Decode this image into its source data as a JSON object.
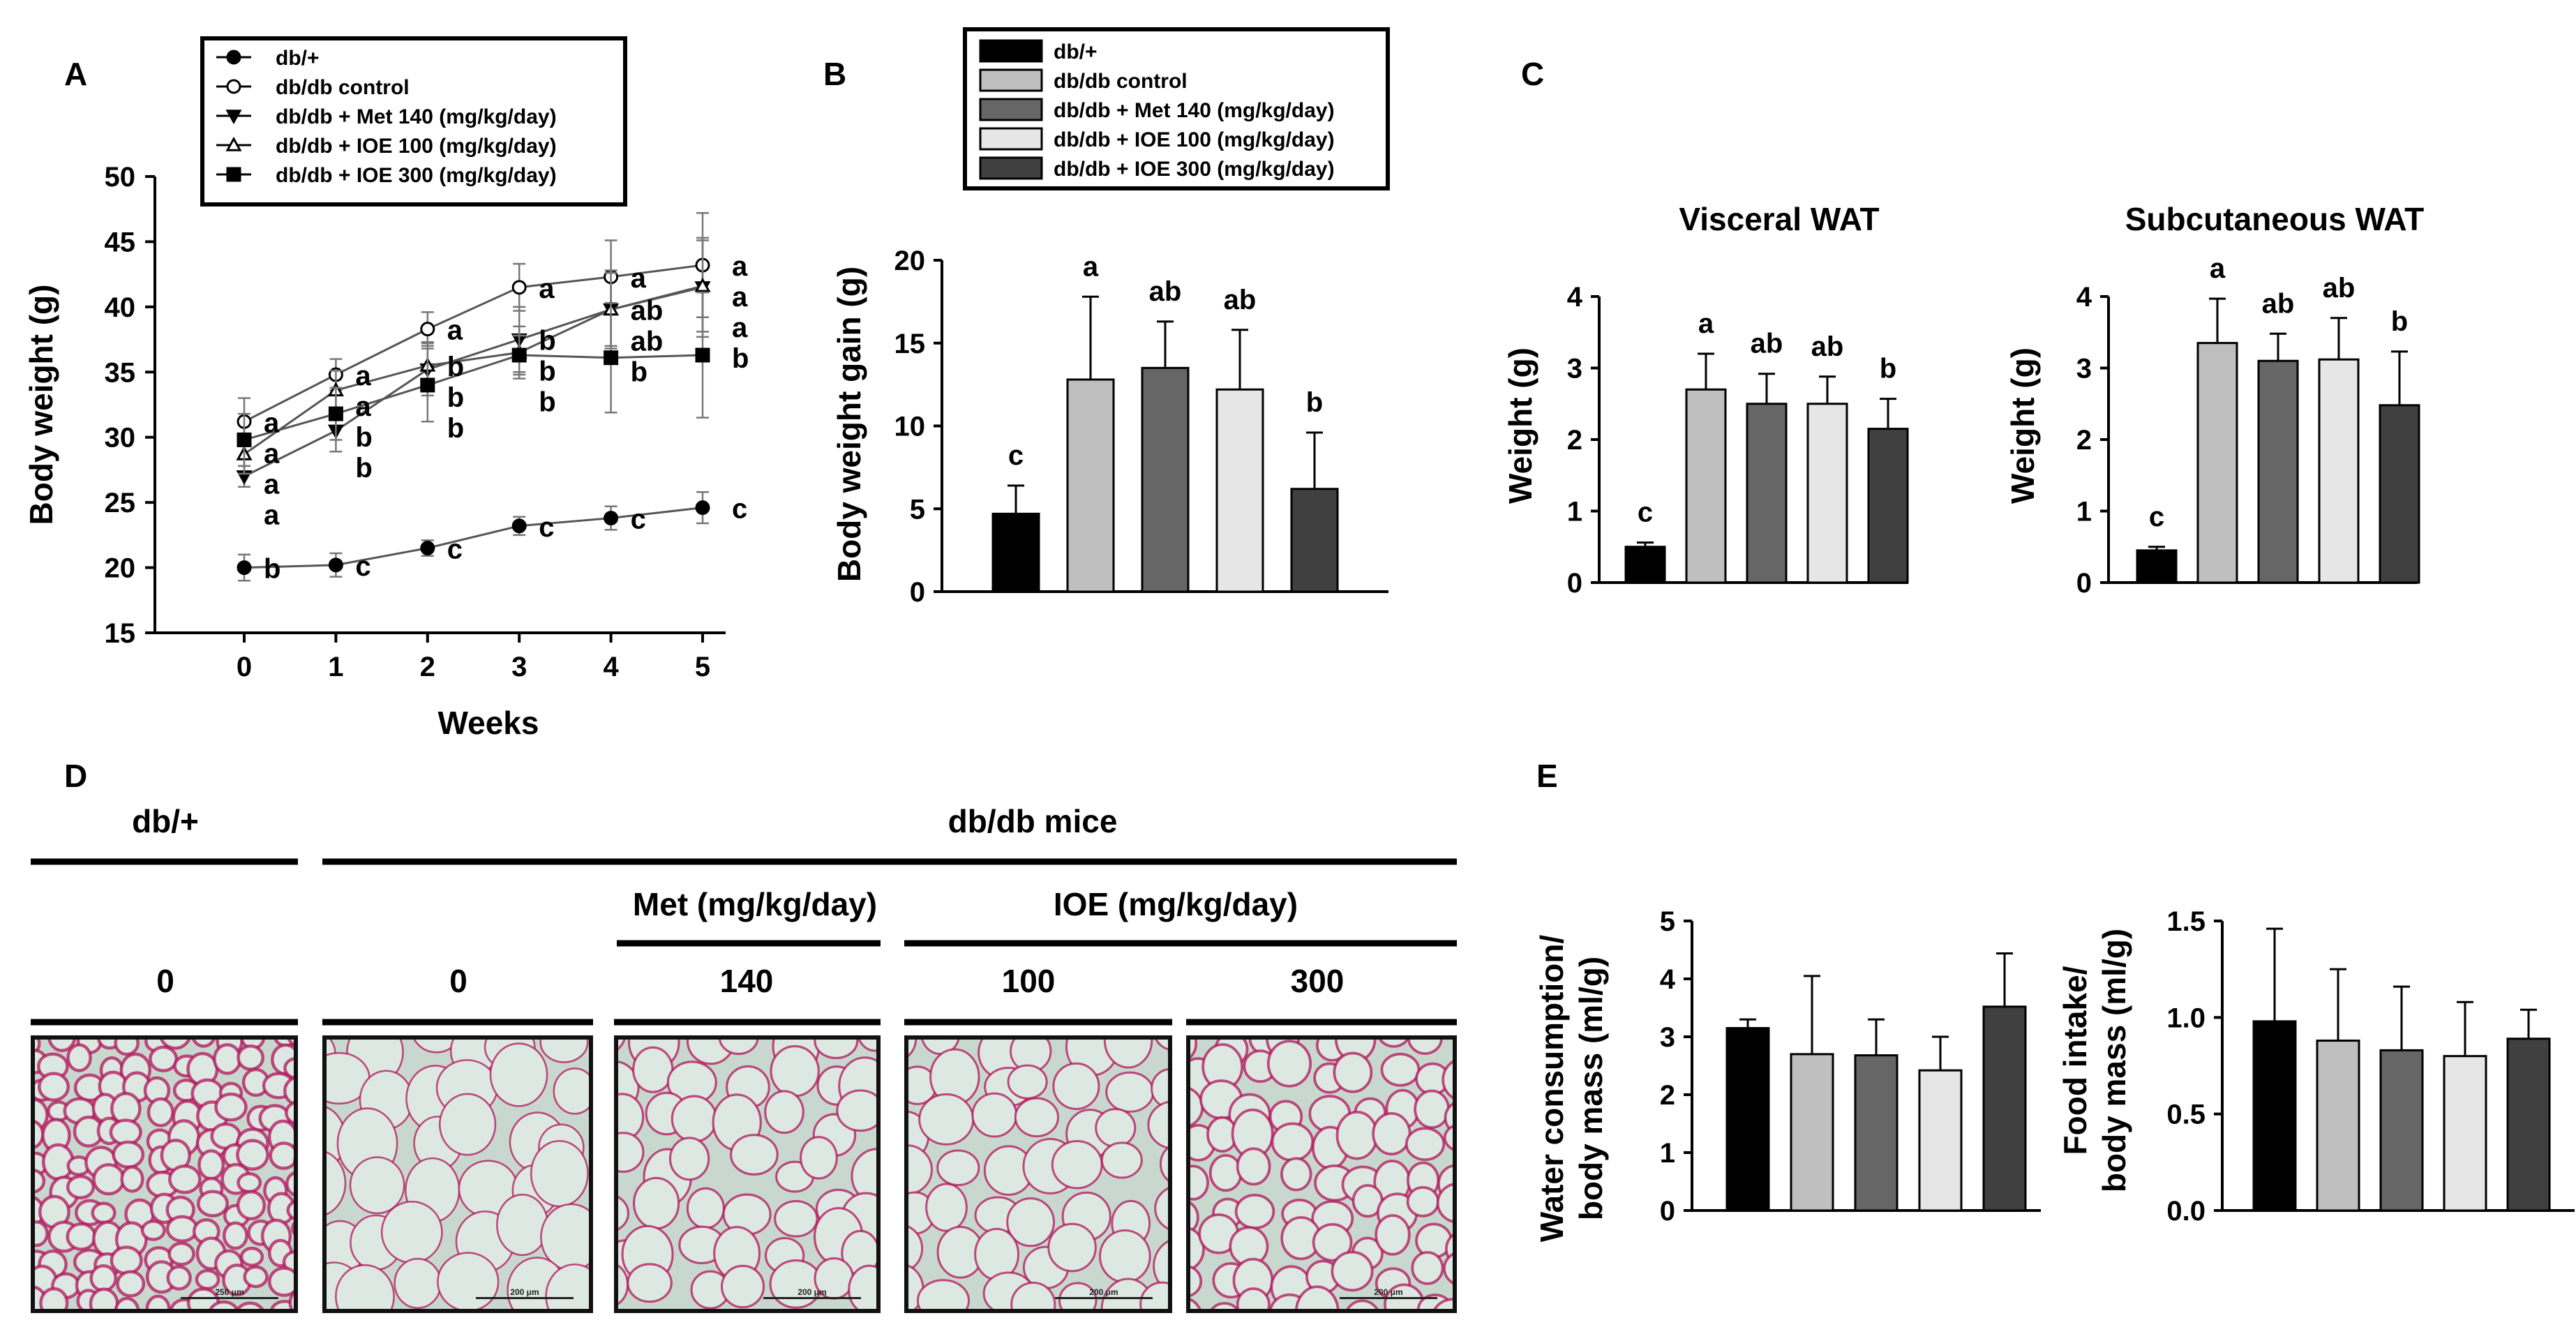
{
  "colors": {
    "db_plus": "#000000",
    "control": "#bfbfbf",
    "met": "#666666",
    "ioe100": "#e6e6e6",
    "ioe300": "#404040",
    "tissue_bg": "#c9d8cf",
    "stain": "#b0145a"
  },
  "legend_groups": [
    "db/+",
    "db/db  control",
    "db/db  + Met 140 (mg/kg/day)",
    "db/db  + IOE 100 (mg/kg/day)",
    "db/db  + IOE 300 (mg/kg/day)"
  ],
  "legend_markers": [
    "filled-circle",
    "open-circle",
    "filled-down-triangle",
    "open-up-triangle",
    "filled-square"
  ],
  "panels": {
    "A": "A",
    "B": "B",
    "C": "C",
    "D": "D",
    "E": "E"
  },
  "chart_data": [
    {
      "id": "A",
      "type": "line",
      "xlabel": "Weeks",
      "ylabel": "Body weight (g)",
      "x": [
        0,
        1,
        2,
        3,
        4,
        5
      ],
      "ylim": [
        15,
        50
      ],
      "yticks": [
        15,
        20,
        25,
        30,
        35,
        40,
        45,
        50
      ],
      "series": [
        {
          "name": "db/+",
          "marker": "filled-circle",
          "values": [
            20.0,
            20.2,
            21.5,
            23.2,
            23.8,
            24.6
          ],
          "errors": [
            1.0,
            0.9,
            0.6,
            0.7,
            0.9,
            1.2
          ],
          "letters": [
            "b",
            "c",
            "c",
            "c",
            "c",
            "c"
          ]
        },
        {
          "name": "db/db  control",
          "marker": "open-circle",
          "values": [
            31.2,
            34.8,
            38.3,
            41.5,
            42.3,
            43.2
          ],
          "errors": [
            1.8,
            1.2,
            1.3,
            1.8,
            2.8,
            4.0
          ],
          "letters": [
            "a",
            "a",
            "a",
            "a",
            "a",
            "a"
          ]
        },
        {
          "name": "db/db  + Met 140 (mg/kg/day)",
          "marker": "filled-down-triangle",
          "values": [
            27.0,
            30.5,
            35.2,
            37.5,
            39.8,
            41.5
          ],
          "errors": [
            0.8,
            1.6,
            2.0,
            2.5,
            3.0,
            3.8
          ],
          "letters": [
            "a",
            "b",
            "b",
            "b",
            "ab",
            "a"
          ]
        },
        {
          "name": "db/db  + IOE 100 (mg/kg/day)",
          "marker": "open-up-triangle",
          "values": [
            28.7,
            33.6,
            35.5,
            36.5,
            39.8,
            41.6
          ],
          "errors": [
            1.5,
            1.5,
            1.8,
            2.0,
            2.8,
            3.5
          ],
          "letters": [
            "a",
            "a",
            "b",
            "b",
            "ab",
            "a"
          ]
        },
        {
          "name": "db/db  + IOE 300 (mg/kg/day)",
          "marker": "filled-square",
          "values": [
            29.8,
            31.8,
            34.0,
            36.3,
            36.1,
            36.3
          ],
          "errors": [
            2.0,
            2.0,
            2.8,
            1.5,
            4.2,
            4.8
          ],
          "letters": [
            "a",
            "b",
            "b",
            "b",
            "b",
            "b"
          ]
        }
      ]
    },
    {
      "id": "B",
      "type": "bar",
      "ylabel": "Body weight gain (g)",
      "ylim": [
        0,
        20
      ],
      "yticks": [
        0,
        5,
        10,
        15,
        20
      ],
      "categories": [
        "db/+",
        "db/db  control",
        "db/db  + Met 140 (mg/kg/day)",
        "db/db  + IOE 100 (mg/kg/day)",
        "db/db  + IOE 300 (mg/kg/day)"
      ],
      "values": [
        4.7,
        12.8,
        13.5,
        12.2,
        6.2
      ],
      "errors": [
        1.7,
        5.0,
        2.8,
        3.6,
        3.4
      ],
      "letters": [
        "c",
        "a",
        "ab",
        "ab",
        "b"
      ]
    },
    {
      "id": "C1",
      "type": "bar",
      "title": "Visceral WAT",
      "ylabel": "Weight (g)",
      "ylim": [
        0,
        4
      ],
      "yticks": [
        0,
        1,
        2,
        3,
        4
      ],
      "categories": [
        "db/+",
        "db/db  control",
        "db/db  + Met 140 (mg/kg/day)",
        "db/db  + IOE 100 (mg/kg/day)",
        "db/db  + IOE 300 (mg/kg/day)"
      ],
      "values": [
        0.5,
        2.7,
        2.5,
        2.5,
        2.15
      ],
      "errors": [
        0.06,
        0.5,
        0.42,
        0.38,
        0.42
      ],
      "letters": [
        "c",
        "a",
        "ab",
        "ab",
        "b"
      ]
    },
    {
      "id": "C2",
      "type": "bar",
      "title": "Subcutaneous WAT",
      "ylabel": "Weight (g)",
      "ylim": [
        0,
        4
      ],
      "yticks": [
        0,
        1,
        2,
        3,
        4
      ],
      "categories": [
        "db/+",
        "db/db  control",
        "db/db  + Met 140 (mg/kg/day)",
        "db/db  + IOE 100 (mg/kg/day)",
        "db/db  + IOE 300 (mg/kg/day)"
      ],
      "values": [
        0.45,
        3.35,
        3.1,
        3.12,
        2.48
      ],
      "errors": [
        0.05,
        0.62,
        0.38,
        0.58,
        0.75
      ],
      "letters": [
        "c",
        "a",
        "ab",
        "ab",
        "b"
      ]
    },
    {
      "id": "E1",
      "type": "bar",
      "ylabel_lines": [
        "Water consumption/",
        "body mass (ml/g)"
      ],
      "ylim": [
        0,
        5
      ],
      "yticks": [
        0,
        1,
        2,
        3,
        4,
        5
      ],
      "categories": [
        "db/+",
        "db/db  control",
        "db/db  + Met 140 (mg/kg/day)",
        "db/db  + IOE 100 (mg/kg/day)",
        "db/db  + IOE 300 (mg/kg/day)"
      ],
      "values": [
        3.15,
        2.7,
        2.68,
        2.42,
        3.52
      ],
      "errors": [
        0.15,
        1.35,
        0.62,
        0.58,
        0.92
      ],
      "letters": []
    },
    {
      "id": "E2",
      "type": "bar",
      "ylabel_lines": [
        "Food intake/",
        "body mass (ml/g)"
      ],
      "ylim": [
        0,
        1.5
      ],
      "yticks": [
        "0.0",
        "0.5",
        "1.0",
        "1.5"
      ],
      "categories": [
        "db/+",
        "db/db  control",
        "db/db  + Met 140 (mg/kg/day)",
        "db/db  + IOE 100 (mg/kg/day)",
        "db/db  + IOE 300 (mg/kg/day)"
      ],
      "values": [
        0.98,
        0.88,
        0.83,
        0.8,
        0.89
      ],
      "errors": [
        0.48,
        0.37,
        0.33,
        0.28,
        0.15
      ],
      "letters": []
    }
  ],
  "histology": {
    "db_plus_header": "db/+",
    "dbdb_header": "db/db mice",
    "met_label": "Met (mg/kg/day)",
    "ioe_label": "IOE (mg/kg/day)",
    "doses": [
      "0",
      "0",
      "140",
      "100",
      "300"
    ],
    "scale_bars": [
      "250 μm",
      "200 μm",
      "200 μm",
      "200 μm",
      "200 μm"
    ],
    "cell_density": [
      1.0,
      0.35,
      0.55,
      0.5,
      0.75
    ]
  }
}
